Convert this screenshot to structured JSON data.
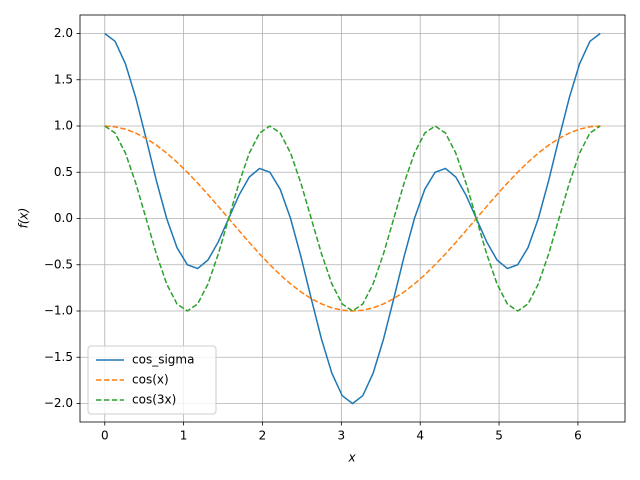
{
  "chart_data": {
    "type": "line",
    "xlabel": "x",
    "ylabel": "f(x)",
    "x": [
      0,
      0.131,
      0.262,
      0.393,
      0.524,
      0.654,
      0.785,
      0.916,
      1.047,
      1.178,
      1.309,
      1.44,
      1.571,
      1.702,
      1.833,
      1.963,
      2.094,
      2.225,
      2.356,
      2.487,
      2.618,
      2.749,
      2.88,
      3.011,
      3.142,
      3.272,
      3.403,
      3.534,
      3.665,
      3.796,
      3.927,
      4.058,
      4.189,
      4.32,
      4.451,
      4.581,
      4.712,
      4.843,
      4.974,
      5.105,
      5.236,
      5.367,
      5.498,
      5.629,
      5.76,
      5.891,
      6.021,
      6.152,
      6.283
    ],
    "series": [
      {
        "name": "cos_sigma",
        "color": "#1f77b4",
        "linestyle": "solid",
        "values": [
          2,
          1.9153,
          1.673,
          1.3066,
          0.866,
          0.4107,
          0,
          -0.3151,
          -0.5,
          -0.5412,
          -0.4483,
          -0.2522,
          0,
          0.2522,
          0.4483,
          0.5412,
          0.5,
          0.3151,
          0,
          -0.4107,
          -0.866,
          -1.3066,
          -1.673,
          -1.9153,
          -2,
          -1.9153,
          -1.673,
          -1.3066,
          -0.866,
          -0.4107,
          0,
          0.3151,
          0.5,
          0.5412,
          0.4483,
          0.2522,
          0,
          -0.2522,
          -0.4483,
          -0.5412,
          -0.5,
          -0.3151,
          0,
          0.4107,
          0.866,
          1.3066,
          1.673,
          1.9153,
          2
        ]
      },
      {
        "name": "cos(x)",
        "color": "#ff7f0e",
        "linestyle": "dashed",
        "values": [
          1,
          0.9914,
          0.9659,
          0.9239,
          0.866,
          0.7934,
          0.7071,
          0.6088,
          0.5,
          0.3827,
          0.2588,
          0.1305,
          0,
          -0.1305,
          -0.2588,
          -0.3827,
          -0.5,
          -0.6088,
          -0.7071,
          -0.7934,
          -0.866,
          -0.9239,
          -0.9659,
          -0.9914,
          -1,
          -0.9914,
          -0.9659,
          -0.9239,
          -0.866,
          -0.7934,
          -0.7071,
          -0.6088,
          -0.5,
          -0.3827,
          -0.2588,
          -0.1305,
          0,
          0.1305,
          0.2588,
          0.3827,
          0.5,
          0.6088,
          0.7071,
          0.7934,
          0.866,
          0.9239,
          0.9659,
          0.9914,
          1
        ]
      },
      {
        "name": "cos(3x)",
        "color": "#2ca02c",
        "linestyle": "dashed",
        "values": [
          1,
          0.9239,
          0.7071,
          0.3827,
          0,
          -0.3827,
          -0.7071,
          -0.9239,
          -1,
          -0.9239,
          -0.7071,
          -0.3827,
          0,
          0.3827,
          0.7071,
          0.9239,
          1,
          0.9239,
          0.7071,
          0.3827,
          0,
          -0.3827,
          -0.7071,
          -0.9239,
          -1,
          -0.9239,
          -0.7071,
          -0.3827,
          0,
          0.3827,
          0.7071,
          0.9239,
          1,
          0.9239,
          0.7071,
          0.3827,
          0,
          -0.3827,
          -0.7071,
          -0.9239,
          -1,
          -0.9239,
          -0.7071,
          -0.3827,
          0,
          0.3827,
          0.7071,
          0.9239,
          1
        ]
      }
    ],
    "xlim": [
      -0.314,
      6.597
    ],
    "ylim": [
      -2.2,
      2.2
    ],
    "xticks": [
      0,
      1,
      2,
      3,
      4,
      5,
      6
    ],
    "yticks": [
      {
        "value": -2,
        "label": "−2.0"
      },
      {
        "value": -1.5,
        "label": "−1.5"
      },
      {
        "value": -1,
        "label": "−1.0"
      },
      {
        "value": -0.5,
        "label": "−0.5"
      },
      {
        "value": 0,
        "label": "0.0"
      },
      {
        "value": 0.5,
        "label": "0.5"
      },
      {
        "value": 1,
        "label": "1.0"
      },
      {
        "value": 1.5,
        "label": "1.5"
      },
      {
        "value": 2,
        "label": "2.0"
      }
    ],
    "grid": true,
    "legend": "lower left"
  }
}
